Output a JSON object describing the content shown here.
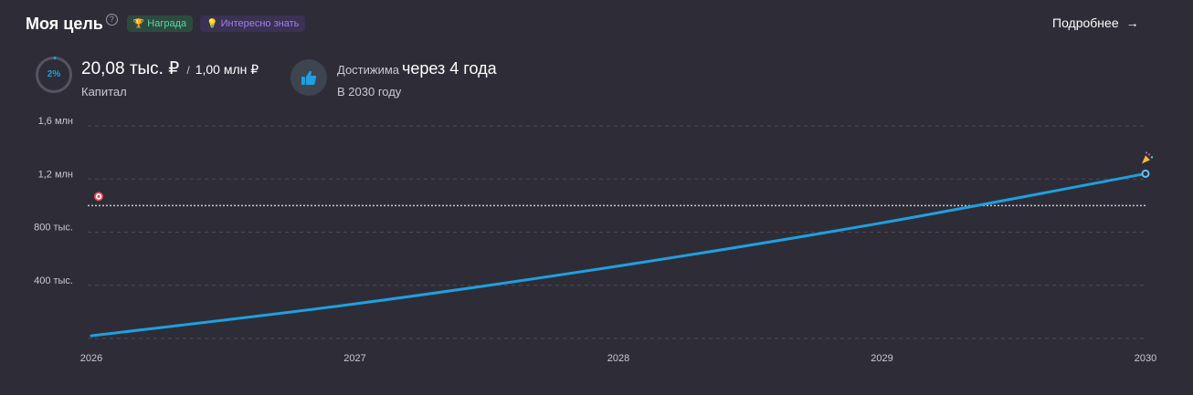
{
  "header": {
    "title": "Моя цель",
    "help_icon": "question-circle-icon",
    "badge_reward": "Награда",
    "badge_info": "Интересно знать",
    "more_label": "Подробнее",
    "more_arrow": "→"
  },
  "summary": {
    "progress_percent": "2%",
    "progress_value": 0.02,
    "capital_amount": "20,08 тыс. ₽",
    "capital_separator": "/",
    "capital_target": "1,00 млн ₽",
    "capital_label": "Капитал",
    "reach_label": "Достижима",
    "reach_value": "через 4 года",
    "reach_year": "В 2030 году"
  },
  "colors": {
    "background": "#2e2d37",
    "line": "#1fa0e0",
    "reward": "#5fd3a2",
    "info": "#a07ff0"
  },
  "chart_data": {
    "type": "line",
    "x": [
      2026,
      2027,
      2028,
      2029,
      2030
    ],
    "x_tick_labels": [
      "2026",
      "2027",
      "2028",
      "2029",
      "2030"
    ],
    "y_ticks": [
      400000,
      800000,
      1200000,
      1600000
    ],
    "y_tick_labels": [
      "400 тыс.",
      "800 тыс.",
      "1,2 млн",
      "1,6 млн"
    ],
    "ylim": [
      0,
      1600000
    ],
    "series": [
      {
        "values": [
          20080,
          260000,
          545000,
          870000,
          1240000
        ]
      }
    ],
    "goal_line": 1000000,
    "goal_icon": "target-icon",
    "end_icon": "party-popper-icon",
    "grid": true
  }
}
